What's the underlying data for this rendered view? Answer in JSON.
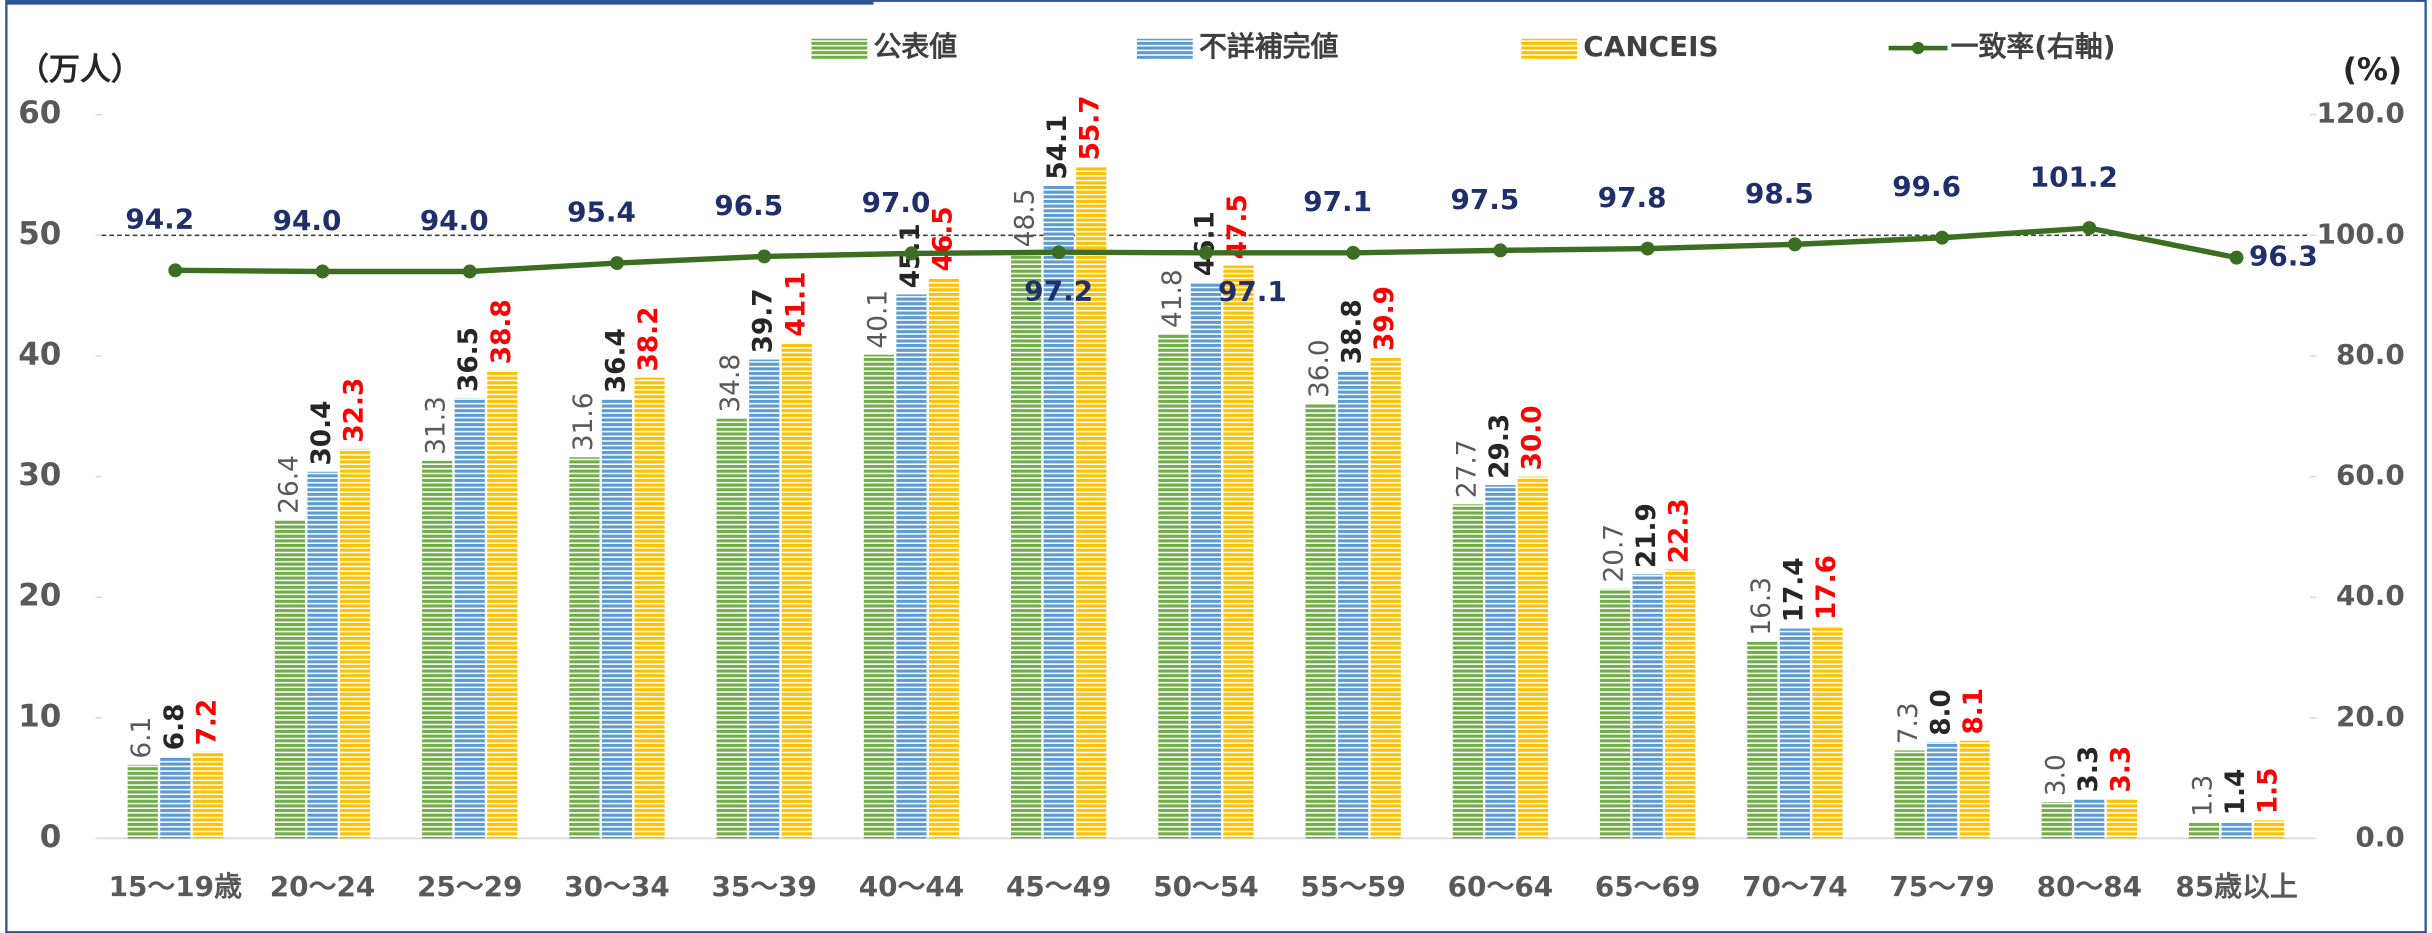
{
  "chart_data": {
    "type": "bar",
    "y_label": "（万人）",
    "y2_label": "(%)",
    "categories": [
      "15～19歳",
      "20～24",
      "25～29",
      "30～34",
      "35～39",
      "40～44",
      "45～49",
      "50～54",
      "55～59",
      "60～64",
      "65～69",
      "70～74",
      "75～79",
      "80～84",
      "85歳以上"
    ],
    "series": [
      {
        "name": "公表値",
        "color": "#70ad47",
        "values": [
          6.1,
          26.4,
          31.3,
          31.6,
          34.8,
          40.1,
          48.5,
          41.8,
          36.0,
          27.7,
          20.7,
          16.3,
          7.3,
          3.0,
          1.3
        ],
        "value_labels": [
          "6.1",
          "26.4",
          "31.3",
          "31.6",
          "34.8",
          "40.1",
          "48.5",
          "41.8",
          "36.0",
          "27.7",
          "20.7",
          "16.3",
          "7.3",
          "3.0",
          "1.3"
        ]
      },
      {
        "name": "不詳補完値",
        "color": "#5b9bd5",
        "values": [
          6.8,
          30.4,
          36.5,
          36.4,
          39.7,
          45.1,
          54.1,
          46.1,
          38.8,
          29.3,
          21.9,
          17.4,
          8.0,
          3.3,
          1.4
        ],
        "value_labels": [
          "6.8",
          "30.4",
          "36.5",
          "36.4",
          "39.7",
          "45.1",
          "54.1",
          "46.1",
          "38.8",
          "29.3",
          "21.9",
          "17.4",
          "8.0",
          "3.3",
          "1.4"
        ]
      },
      {
        "name": "CANCEIS",
        "color": "#ffc000",
        "values": [
          7.2,
          32.3,
          38.8,
          38.2,
          41.1,
          46.5,
          55.7,
          47.5,
          39.9,
          30.0,
          22.3,
          17.6,
          8.1,
          3.3,
          1.5
        ],
        "value_labels": [
          "7.2",
          "32.3",
          "38.8",
          "38.2",
          "41.1",
          "46.5",
          "55.7",
          "47.5",
          "39.9",
          "30.0",
          "22.3",
          "17.6",
          "8.1",
          "3.3",
          "1.5"
        ]
      },
      {
        "name": "一致率(右軸)",
        "color": "#3b6e22",
        "type": "line",
        "axis": "y2",
        "values": [
          94.2,
          94.0,
          94.0,
          95.4,
          96.5,
          97.0,
          97.2,
          97.1,
          97.1,
          97.5,
          97.8,
          98.5,
          99.6,
          101.2,
          96.3
        ],
        "value_labels": [
          "94.2",
          "94.0",
          "94.0",
          "95.4",
          "96.5",
          "97.0",
          "97.2",
          "97.1",
          "97.1",
          "97.5",
          "97.8",
          "98.5",
          "99.6",
          "101.2",
          "96.3"
        ]
      }
    ],
    "ylim": [
      0,
      60
    ],
    "yticks": [
      0,
      10,
      20,
      30,
      40,
      50,
      60
    ],
    "y2lim": [
      0,
      120
    ],
    "y2ticks": [
      {
        "value": 0,
        "label": "0.0"
      },
      {
        "value": 20,
        "label": "20.0"
      },
      {
        "value": 40,
        "label": "40.0"
      },
      {
        "value": 60,
        "label": "60.0"
      },
      {
        "value": 80,
        "label": "80.0"
      },
      {
        "value": 100,
        "label": "100.0"
      },
      {
        "value": 120,
        "label": "120.0"
      }
    ],
    "y2_reference": 100,
    "legend": "top"
  }
}
